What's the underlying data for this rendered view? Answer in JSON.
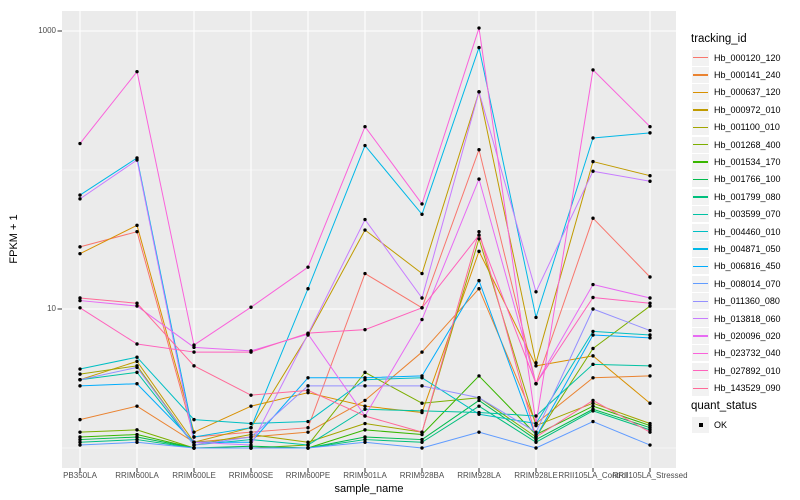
{
  "chart_data": {
    "type": "line",
    "title": "",
    "xlabel": "sample_name",
    "ylabel": "FPKM + 1",
    "y_scale": "log10",
    "y_ticks": [
      10,
      1000
    ],
    "y_minor_gridlines": [
      1,
      100
    ],
    "ylim_approx": [
      1,
      1400
    ],
    "grid": true,
    "legend_position": "right",
    "legend_title": "tracking_id",
    "x_categories": [
      "PB350LA",
      "RRIM600LA",
      "RRIM600LE",
      "RRIM600SE",
      "RRIM600PE",
      "RRIM901LA",
      "RRIM928BA",
      "RRIM928LA",
      "RRIM928LE",
      "RRII105LA_Control",
      "RRII105LA_Stressed"
    ],
    "series": [
      {
        "name": "Hb_000120_120",
        "color": "#F8766D",
        "values": [
          28,
          36,
          1.2,
          1.3,
          1.4,
          18,
          10.2,
          140,
          2.9,
          45,
          17
        ]
      },
      {
        "name": "Hb_000141_240",
        "color": "#EA8331",
        "values": [
          1.6,
          2.0,
          1.1,
          1.2,
          1.3,
          2.2,
          4.9,
          14,
          1.5,
          3.2,
          3.3
        ]
      },
      {
        "name": "Hb_000637_120",
        "color": "#D89000",
        "values": [
          25,
          40,
          1.3,
          2.0,
          2.5,
          2.0,
          1.8,
          26,
          3.9,
          4.6,
          2.1
        ]
      },
      {
        "name": "Hb_000972_010",
        "color": "#C09B00",
        "values": [
          3.1,
          4.2,
          1.1,
          1.4,
          6.5,
          37,
          18,
          365,
          4.1,
          115,
          91
        ]
      },
      {
        "name": "Hb_001100_010",
        "color": "#A3A500",
        "values": [
          3.4,
          3.9,
          1.05,
          1.25,
          1.1,
          1.5,
          1.3,
          32,
          1.45,
          2.1,
          1.5
        ]
      },
      {
        "name": "Hb_001268_400",
        "color": "#7CAE00",
        "values": [
          1.3,
          1.35,
          1.0,
          1.0,
          1.05,
          3.5,
          2.1,
          2.3,
          1.2,
          5.2,
          10.5
        ]
      },
      {
        "name": "Hb_001534_170",
        "color": "#39B600",
        "values": [
          1.2,
          1.25,
          1.0,
          1.0,
          1.0,
          1.35,
          1.25,
          3.3,
          1.25,
          2.0,
          1.45
        ]
      },
      {
        "name": "Hb_001766_100",
        "color": "#00BB4E",
        "values": [
          1.15,
          1.2,
          1.0,
          1.03,
          1.0,
          1.2,
          1.15,
          2.2,
          1.15,
          1.9,
          1.4
        ]
      },
      {
        "name": "Hb_001799_080",
        "color": "#00BF7D",
        "values": [
          1.1,
          1.15,
          1.0,
          1.0,
          1.0,
          1.15,
          1.1,
          2.0,
          1.1,
          1.85,
          1.35
        ]
      },
      {
        "name": "Hb_003599_070",
        "color": "#00C1A3",
        "values": [
          3.1,
          3.5,
          1.05,
          1.15,
          1.05,
          1.9,
          1.85,
          1.8,
          1.7,
          4.0,
          3.9
        ]
      },
      {
        "name": "Hb_004460_010",
        "color": "#00BFC4",
        "values": [
          3.7,
          4.5,
          1.6,
          1.5,
          1.55,
          3.1,
          3.2,
          1.75,
          1.5,
          6.9,
          6.5
        ]
      },
      {
        "name": "Hb_004871_050",
        "color": "#00B8E7",
        "values": [
          66,
          122,
          1.2,
          1.4,
          14,
          150,
          48,
          760,
          8.7,
          170,
          185
        ]
      },
      {
        "name": "Hb_006816_450",
        "color": "#00ACFC",
        "values": [
          2.8,
          2.9,
          1.1,
          1.1,
          3.2,
          3.2,
          3.3,
          16,
          1.2,
          6.5,
          6.2
        ]
      },
      {
        "name": "Hb_008014_070",
        "color": "#619CFF",
        "values": [
          1.05,
          1.1,
          1.0,
          1.0,
          1.0,
          1.1,
          1.0,
          1.3,
          1.0,
          1.55,
          1.05
        ]
      },
      {
        "name": "Hb_011360_080",
        "color": "#9590FF",
        "values": [
          3.1,
          3.8,
          1.05,
          1.2,
          2.8,
          2.8,
          2.8,
          2.3,
          1.3,
          10,
          7.0
        ]
      },
      {
        "name": "Hb_013818_060",
        "color": "#C77CFF",
        "values": [
          62,
          118,
          1.1,
          1.05,
          6.6,
          44,
          12,
          365,
          13.3,
          98,
          83
        ]
      },
      {
        "name": "Hb_020096_020",
        "color": "#E76BF3",
        "values": [
          11.5,
          10.5,
          5.3,
          5.0,
          6.6,
          1.7,
          8.4,
          86,
          2.9,
          15,
          12
        ]
      },
      {
        "name": "Hb_023732_040",
        "color": "#FA62DB",
        "values": [
          155,
          510,
          5.5,
          10.3,
          20,
          205,
          57,
          1050,
          1.5,
          525,
          205
        ]
      },
      {
        "name": "Hb_027892_010",
        "color": "#FF62BC",
        "values": [
          10.2,
          5.6,
          4.9,
          4.9,
          6.7,
          7.1,
          10.2,
          34,
          2.9,
          12.1,
          11
        ]
      },
      {
        "name": "Hb_143529_090",
        "color": "#FF6A98",
        "values": [
          12,
          11,
          3.9,
          2.4,
          2.6,
          1.7,
          1.3,
          36,
          1.2,
          2.2,
          1.3
        ]
      }
    ],
    "quant_legend": {
      "title": "quant_status",
      "items": [
        "OK"
      ]
    }
  },
  "style": {
    "panel_bg": "#EBEBEB",
    "gridline": "#FFFFFF",
    "point_color": "#000000",
    "tick_mark": "#333333",
    "tick_text": "#4D4D4D",
    "legend_key_bg": "#F2F2F2"
  }
}
